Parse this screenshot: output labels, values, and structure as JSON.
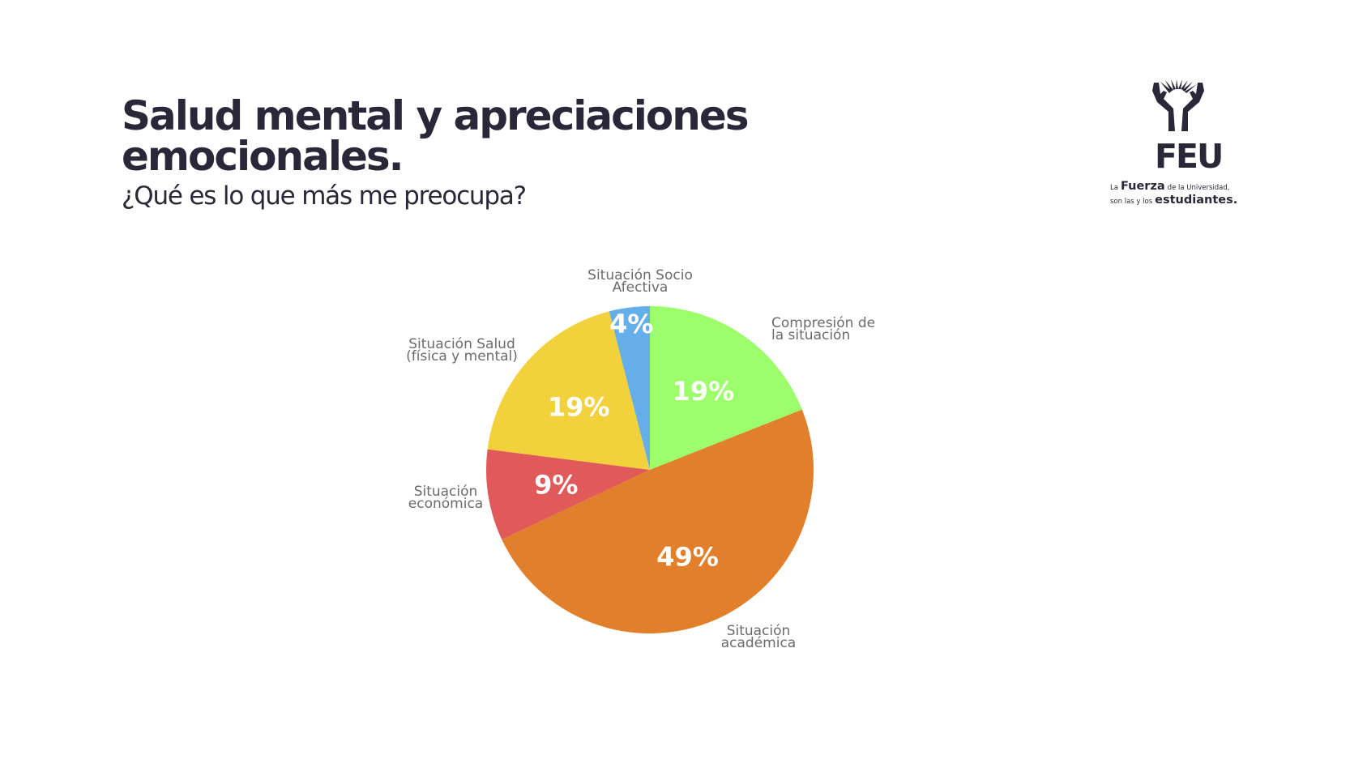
{
  "header": {
    "title_line1": "Salud mental y apreciaciones",
    "title_line2": "emocionales.",
    "subtitle": "¿Qué es lo que más me preocupa?"
  },
  "logo": {
    "wordmark": "FEU",
    "tag_la": "La",
    "tag_fuerza": "Fuerza",
    "tag_de_la": "de la Universidad,",
    "tag_son": "son las y los",
    "tag_estudiantes": "estudiantes.",
    "color": "#2a2838"
  },
  "chart_data": {
    "type": "pie",
    "slices": [
      {
        "category": "Compresión de la situación",
        "label_lines": [
          "Compresión de",
          "la situación"
        ],
        "value": 19,
        "value_label": "19%",
        "color": "#9cfe6b"
      },
      {
        "category": "Situación académica",
        "label_lines": [
          "Situación",
          "académica"
        ],
        "value": 49,
        "value_label": "49%",
        "color": "#e27f2a"
      },
      {
        "category": "Situación económica",
        "label_lines": [
          "Situación",
          "económica"
        ],
        "value": 9,
        "value_label": "9%",
        "color": "#e05a59"
      },
      {
        "category": "Situación Salud (física y mental)",
        "label_lines": [
          "Situación Salud",
          "(física y mental)"
        ],
        "value": 19,
        "value_label": "19%",
        "color": "#f2d13c"
      },
      {
        "category": "Situación Socio Afectiva",
        "label_lines": [
          "Situación Socio",
          "Afectiva"
        ],
        "value": 4,
        "value_label": "4%",
        "color": "#64aee9"
      }
    ],
    "start": "12 o'clock",
    "direction": "clockwise"
  }
}
